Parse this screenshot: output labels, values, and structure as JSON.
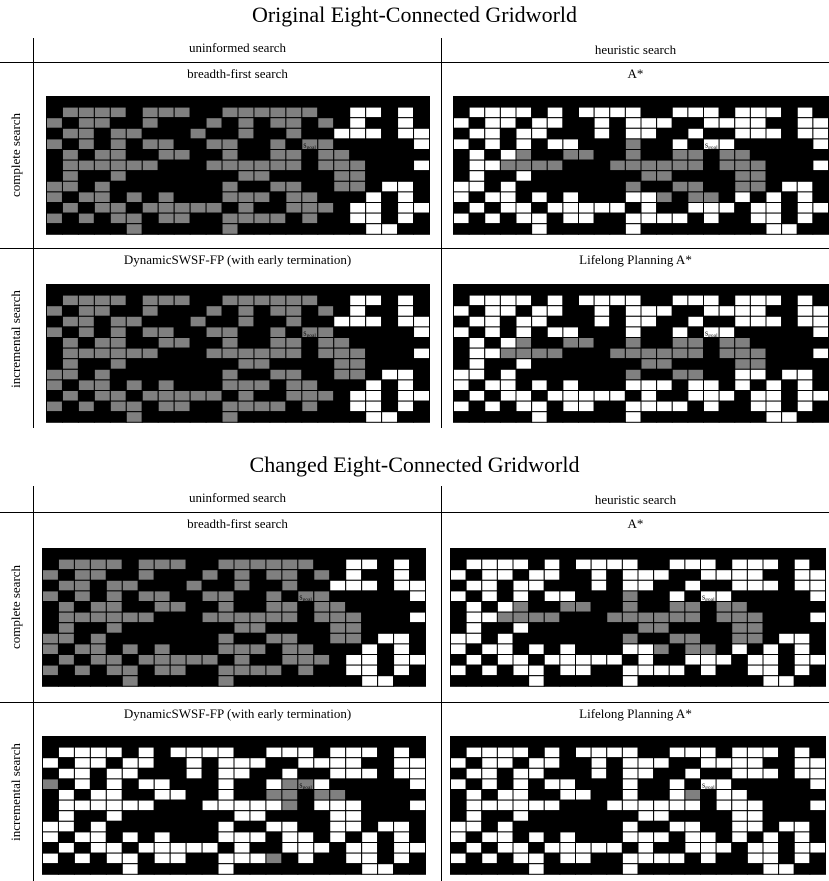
{
  "sections": [
    {
      "title": "Original Eight-Connected Gridworld",
      "col_headers": [
        "uninformed search",
        "heuristic search"
      ],
      "row_labels": [
        "complete search",
        "incremental search"
      ],
      "panels": [
        {
          "title": "breadth-first search",
          "grid": [
            "BBBBBBBBBBBBBBBBBBBBBBBB",
            "BGGGGBGGGBBGGGGGGBBWWBWB",
            "GBGGBBGBBBGBGBGGBGBWBBWB",
            "BGGBGGBBBGBBGBBGBBWWWBWW",
            "GBGBGBGGBBGGBBGBGGBBBBBW",
            "BGBGGBBGGBBGBBGGBGGBBBBB",
            "BGGGGGGBBBGGGGGGBGGGBBBW",
            "BGBBGBBBBBBBGGBBBBGGBBBB",
            "GGBGBBBBBBBGBBGGBBGGBWWB",
            "GBGGBGBGBBBGGGBGGBBBWBWB",
            "BGBGGBGGGGGBGBBGGGBWWBWW",
            "GBGBGGBGGBBGGGGBGBBWWBWB",
            "BBBBBGBBBBBGBBBBBBBBWWBB"
          ],
          "start": [
            3,
            4
          ],
          "goal": [
            16,
            4
          ]
        },
        {
          "title": "A*",
          "grid": [
            "BBBBBBBBBBBBBBBBBBBBBBBB",
            "BWWWWBWBWWWWBBWWWBWWWBWB",
            "WBWWBWWBBWBWWWBBWWWWBBWW",
            "BWWBWWBBBWBWWBBWBBWWWBWW",
            "WBWBWBWWBBBGBBWBWWBBBBBW",
            "BWBWGBBGGBBGBBGGBGGBBBBB",
            "BWWGGGGBBBGGGGGGBGGGBBBW",
            "BWBBWBBBBBBBGGBBBBGGBBBB",
            "WWBWBBBBBBBGBBGGBBGGBWWB",
            "WBWWBWBWBBBWWGBGGBWBWBWB",
            "BWBWWBWWWWWBWBBWWWBWWBWW",
            "WBWBWWBWWBBWWWWBWBBWWBWB",
            "BBBBBWBBBBBWBBBBBBBBWWBB"
          ],
          "start": [
            3,
            4
          ],
          "goal": [
            16,
            4
          ]
        },
        {
          "title": "DynamicSWSF-FP (with early termination)",
          "grid": [
            "BBBBBBBBBBBBBBBBBBBBBBBB",
            "BGGGGBGGGBBGGGGGGBBWWBWB",
            "GBGGBBGBBBGBGBGGBGBWBBWB",
            "BGGBGGBBBGBBGBBGBBWWWBWW",
            "GBGBGBGGBBGGBBGBGGBBBBBW",
            "BGBGGBBGGBBGBBGGBGGBBBBB",
            "BGGGGGGBBBGGGGGGBGGGBBBW",
            "BGBBGBBBBBBBGGBBBBGGBBBB",
            "GGBGBBBBBBBGBBGGBBGGBWWB",
            "GBGGBGBGBBBGGGBGGBBBWBWB",
            "BGBGGBGGGGGBGBBGGGBWWBWW",
            "GBGBGGBGGBBGGGGBGBBWWBWB",
            "BBBBBGBBBBBGBBBBBBBBWWBB"
          ],
          "start": [
            3,
            4
          ],
          "goal": [
            16,
            4
          ]
        },
        {
          "title": "Lifelong Planning A*",
          "grid": [
            "BBBBBBBBBBBBBBBBBBBBBBBB",
            "BWWWWBWBWWWWBBWWWBWWWBWB",
            "WBWWBWWBBWBWWWBBWWWWBBWW",
            "BWWBWWBBBWBWWBBWBBWWWBWW",
            "WBWBWBWWBBBWBBWBWWBBBBBW",
            "BWBWGBBGGBBGBBGGBGGBBBBB",
            "BWWGGGGBBBGGGGGGBGGGBBBW",
            "BWBBWBBBBBBBGGBBBBGGBBBB",
            "WWBWBBBBBBBGBBGGBBWWBWWB",
            "WBWWBWBWBBBWWWBWWBWBWBWB",
            "BWBWWBWWWWWBWBBWWWBWWBWW",
            "WBWBWWBWWBBWWWWBWBBWWBWB",
            "BBBBBWBBBBBWBBBBBBBBWWBB"
          ],
          "start": [
            3,
            4
          ],
          "goal": [
            16,
            4
          ]
        }
      ],
      "start_label": "s",
      "start_sub": "start",
      "goal_label": "s",
      "goal_sub": "goal"
    },
    {
      "title": "Changed Eight-Connected Gridworld",
      "col_headers": [
        "uninformed search",
        "heuristic search"
      ],
      "row_labels": [
        "complete search",
        "incremental search"
      ],
      "panels": [
        {
          "title": "breadth-first search",
          "grid": [
            "BBBBBBBBBBBBBBBBBBBBBBBB",
            "BGGGGBGGGBBGGGGGGBBWWBWB",
            "GBGGBBGBBBGBGBGGBGBWBBWB",
            "BGGBGGBBBGBBGBBGBBWWWBWW",
            "GBGBGBGGBBGGBBGBGGBBBBBW",
            "BGBGGBBGGBBGBBGGBGGBBBBB",
            "BGGGGGGBBBGGGGGGBGGGBBBW",
            "BGBBGBBBBBBBGGBBBBGGBBBB",
            "GGBGBBBBBBBGBBGGBBGGBWWB",
            "GBGGBGBGBBBGGGBGGBBBWBWB",
            "BGBGGBGGGGGBGBBGGGBWWBWW",
            "GBGBGGBGGBBGGGGBGBBWWBWB",
            "BBBBBGBBBBBGBBBBBBBBWWBB"
          ],
          "start": [
            3,
            4
          ],
          "goal": [
            16,
            4
          ]
        },
        {
          "title": "A*",
          "grid": [
            "BBBBBBBBBBBBBBBBBBBBBBBB",
            "BWWWWBWBWWWWBBWWWBWWWBWB",
            "WBWWBWWBBWBWWWBBWWWWBBWW",
            "BWWBWWBBBWBWWBBWBBWWWBWW",
            "WBWBWBWWBBBGBBWBWWBBBBBW",
            "BWBWGBBGGBBGBBGGBGGBBBBB",
            "BWWGGGGBBBGGGGGGBGGGBBBW",
            "BWBBWBBBBBBBGGBBBBGGBBBB",
            "WWBWBBBBBBBGBBGGBBGGBWWB",
            "WBWWBWBWBBBWWGBGGBWBWBWB",
            "BWBWWBWWWWWBWBBWWWBWWBWW",
            "WBWBWWBWWBBWWWWBWBBWWBWB",
            "BBBBBWBBBBBWBBBBBBBBWWBB"
          ],
          "start": [
            3,
            4
          ],
          "goal": [
            16,
            4
          ]
        },
        {
          "title": "DynamicSWSF-FP (with early termination)",
          "grid": [
            "BBBBBBBBBBBBBBBBBBBBBBBB",
            "BWWWWBWBWWWWBBWWWBWWWBWB",
            "WBWWBWWBBWBWWWBBWWWWBBWW",
            "BWWBWWBBBWBWWBBWBBWWWBWW",
            "GBWBWBWWBBBWBBWGGWBBBBBW",
            "BWBWWBBWWBBWBBGGBGGBBBBB",
            "BWWWWWWBBBWWWWWGBWWWBBBW",
            "BWBBWBBBBBBBWWBBBBWWBBBB",
            "WWBWBBBBBBBWBBWWBBWWBWWB",
            "WBWWBWBWBBBWWWBWWBWBWBWB",
            "BWBWWBWWWWWBWBBWWWBWWBWW",
            "WBWBWWBWWBBWWWGBWBBWWBWB",
            "BBBBBWBBBBBWBBBBBBBBWWBB"
          ],
          "start": [
            3,
            4
          ],
          "goal": [
            16,
            4
          ]
        },
        {
          "title": "Lifelong Planning A*",
          "grid": [
            "BBBBBBBBBBBBBBBBBBBBBBBB",
            "BWWWWBWBWWWWBBWWWBWWWBWB",
            "WBWWBWWBBWBWWWBBWWWWBBWW",
            "BWWBWWBBBWBWWBBWBBWWWBWW",
            "WBWBWBWWBBBWBBWBWWBBBBBW",
            "BWBWWBBWWBBWBBWGBWWBBBBB",
            "BWWWWWWBBBWWWWWWBWWWBBBW",
            "BWBBWBBBBBBBWWBBBBWWBBBB",
            "WWBWBBBBBBBWBBWWBBWWBWWB",
            "WBWWBWBWBBBWWWBWWBWBWBWB",
            "BWBWWBWWWWWBWBBWWWBWWBWW",
            "WBWBWWBWWBBWWWWBWBBWWBWB",
            "BBBBBWBBBBBWBBBBBBBBWWBB"
          ],
          "start": [
            3,
            4
          ],
          "goal": [
            16,
            4
          ]
        }
      ],
      "start_label": "s",
      "start_sub": "start",
      "goal_label": "s",
      "goal_sub": "goal"
    }
  ],
  "colors": {
    "blocked": "#000000",
    "expanded": "#808080",
    "free": "#ffffff",
    "line": "#000000"
  }
}
